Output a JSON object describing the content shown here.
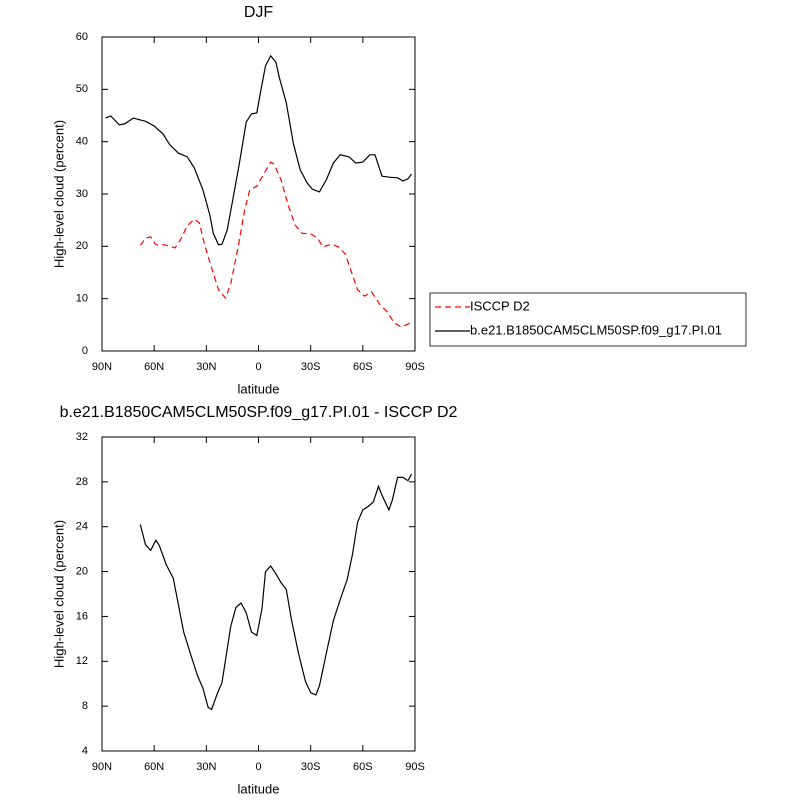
{
  "chart_data": [
    {
      "type": "line",
      "title": "DJF",
      "xlabel": "latitude",
      "ylabel": "High-level cloud (percent)",
      "xlim": [
        90,
        -90
      ],
      "xticks": [
        {
          "value": 90,
          "label": "90N"
        },
        {
          "value": 60,
          "label": "60N"
        },
        {
          "value": 30,
          "label": "30N"
        },
        0,
        {
          "value": -30,
          "label": "30S"
        },
        {
          "value": -60,
          "label": "60S"
        },
        {
          "value": -90,
          "label": "90S"
        }
      ],
      "ylim": [
        0,
        60
      ],
      "yticks": [
        0,
        10,
        20,
        30,
        40,
        50,
        60
      ],
      "legend": "right",
      "series": [
        {
          "name": "ISCCP D2",
          "color": "#ff0000",
          "linestyle": "dashed",
          "x": [
            68,
            65,
            62,
            59,
            54,
            48,
            45,
            41,
            37,
            34,
            31,
            27,
            23,
            19,
            16,
            12,
            8,
            5,
            1,
            -3,
            -7,
            -9,
            -13,
            -17,
            -21,
            -25,
            -30,
            -34,
            -37,
            -42,
            -46,
            -50,
            -53,
            -57,
            -61,
            -65,
            -70,
            -74,
            -78,
            -82,
            -85,
            -88
          ],
          "values": [
            20.2,
            21.6,
            21.8,
            20.3,
            20.3,
            19.7,
            21.2,
            23.9,
            25.2,
            24.5,
            20.3,
            15.9,
            11.7,
            10.1,
            12.8,
            19.3,
            26.9,
            30.8,
            31.5,
            33.8,
            36.1,
            35.7,
            32.7,
            27.9,
            24.1,
            22.5,
            22.4,
            21.6,
            19.9,
            20.4,
            19.9,
            18.5,
            15.5,
            11.7,
            10.5,
            11.3,
            8.8,
            7.5,
            5.4,
            4.6,
            5.0,
            5.5
          ]
        },
        {
          "name": "b.e21.B1850CAM5CLM50SP.f09_g17.PI.01",
          "color": "#000000",
          "linestyle": "solid",
          "x": [
            88,
            85,
            80,
            77,
            72,
            65,
            60,
            55,
            51,
            46,
            41,
            37,
            32,
            28,
            26,
            23,
            21,
            18,
            15,
            11,
            7,
            4,
            1,
            -1,
            -4,
            -7,
            -10,
            -12,
            -16,
            -20,
            -24,
            -28,
            -31,
            -35,
            -39,
            -43,
            -47,
            -52,
            -56,
            -60,
            -64,
            -67,
            -71,
            -76,
            -80,
            -83,
            -86,
            -88
          ],
          "values": [
            44.5,
            44.9,
            43.2,
            43.4,
            44.5,
            43.9,
            43.0,
            41.5,
            39.4,
            37.8,
            37.1,
            35.0,
            30.8,
            26.0,
            22.5,
            20.3,
            20.4,
            23.1,
            28.5,
            35.9,
            43.8,
            45.3,
            45.5,
            49.1,
            54.5,
            56.4,
            55.2,
            52.2,
            47.4,
            39.7,
            34.6,
            32.1,
            30.9,
            30.4,
            32.7,
            35.9,
            37.5,
            37.1,
            35.9,
            36.1,
            37.5,
            37.5,
            33.4,
            33.2,
            33.1,
            32.5,
            32.9,
            33.8
          ]
        }
      ]
    },
    {
      "type": "line",
      "title": "b.e21.B1850CAM5CLM50SP.f09_g17.PI.01 - ISCCP D2",
      "xlabel": "latitude",
      "ylabel": "High-level cloud (percent)",
      "xlim": [
        90,
        -90
      ],
      "xticks": [
        {
          "value": 90,
          "label": "90N"
        },
        {
          "value": 60,
          "label": "60N"
        },
        {
          "value": 30,
          "label": "30N"
        },
        0,
        {
          "value": -30,
          "label": "30S"
        },
        {
          "value": -60,
          "label": "60S"
        },
        {
          "value": -90,
          "label": "90S"
        }
      ],
      "ylim": [
        4,
        32
      ],
      "yticks": [
        4,
        8,
        12,
        16,
        20,
        24,
        28,
        32
      ],
      "series": [
        {
          "color": "#000000",
          "linestyle": "solid",
          "x": [
            68,
            65,
            62,
            59,
            57,
            53,
            49,
            43,
            39,
            35,
            32,
            29,
            27,
            24,
            21,
            16,
            13,
            10,
            7,
            4,
            1,
            -2,
            -4,
            -7,
            -10,
            -13,
            -16,
            -19,
            -23,
            -27,
            -30,
            -33,
            -35,
            -39,
            -43,
            -47,
            -51,
            -54,
            -57,
            -60,
            -63,
            -66,
            -69,
            -71,
            -75,
            -77,
            -80,
            -83,
            -86,
            -88
          ],
          "values": [
            24.2,
            22.4,
            21.9,
            22.8,
            22.3,
            20.6,
            19.4,
            14.6,
            12.6,
            10.7,
            9.6,
            7.9,
            7.7,
            9.0,
            10.1,
            15.1,
            16.8,
            17.2,
            16.3,
            14.6,
            14.3,
            16.7,
            20.0,
            20.5,
            19.8,
            19.0,
            18.4,
            15.7,
            12.7,
            10.2,
            9.2,
            9.0,
            9.8,
            12.7,
            15.6,
            17.5,
            19.3,
            21.5,
            24.4,
            25.5,
            25.8,
            26.2,
            27.6,
            26.8,
            25.5,
            26.4,
            28.4,
            28.4,
            28.1,
            28.7
          ]
        }
      ]
    }
  ]
}
